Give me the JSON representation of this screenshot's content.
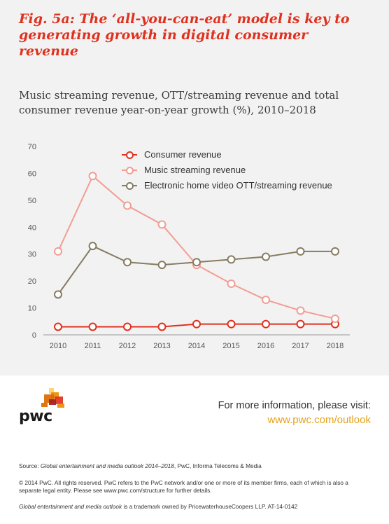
{
  "header": {
    "fig_title": "Fig. 5a: The ‘all-you-can-eat’ model is key to generating growth in digital consumer revenue",
    "subtitle": "Music streaming revenue, OTT/streaming revenue and total consumer revenue year-on-year growth (%), 2010–2018"
  },
  "chart_data": {
    "type": "line",
    "x": [
      2010,
      2011,
      2012,
      2013,
      2014,
      2015,
      2016,
      2017,
      2018
    ],
    "ylim": [
      0,
      70
    ],
    "yticks": [
      0,
      10,
      20,
      30,
      40,
      50,
      60,
      70
    ],
    "grid": false,
    "legend_position": "top",
    "series": [
      {
        "name": "Consumer revenue",
        "color": "#e0301e",
        "values": [
          3,
          3,
          3,
          3,
          4,
          4,
          4,
          4,
          4
        ]
      },
      {
        "name": "Music streaming revenue",
        "color": "#f29d94",
        "values": [
          31,
          59,
          48,
          41,
          26,
          19,
          13,
          9,
          6
        ]
      },
      {
        "name": "Electronic home video OTT/streaming revenue",
        "color": "#857c61",
        "values": [
          15,
          33,
          27,
          26,
          27,
          28,
          29,
          31,
          31
        ]
      }
    ]
  },
  "footer": {
    "logo_text": "pwc",
    "logo_colors": [
      "#fbd26b",
      "#eb8c00",
      "#e0301e",
      "#a32020",
      "#dc6900"
    ],
    "more_label": "For more information, please visit:",
    "more_link": "www.pwc.com/outlook",
    "source_label": "Source: ",
    "source_title": "Global entertainment and media outlook 2014–2018",
    "source_rest": ", PwC, Informa Telecoms & Media",
    "copyright": "© 2014 PwC. All rights reserved. PwC refers to the PwC network and/or one or more of its member firms, each of which is also a separate legal entity. Please see www.pwc.com/structure for further details.",
    "tm_title": "Global entertainment and media outlook",
    "tm_rest": " is a trademark owned by PricewaterhouseCoopers LLP. AT-14-0142"
  }
}
